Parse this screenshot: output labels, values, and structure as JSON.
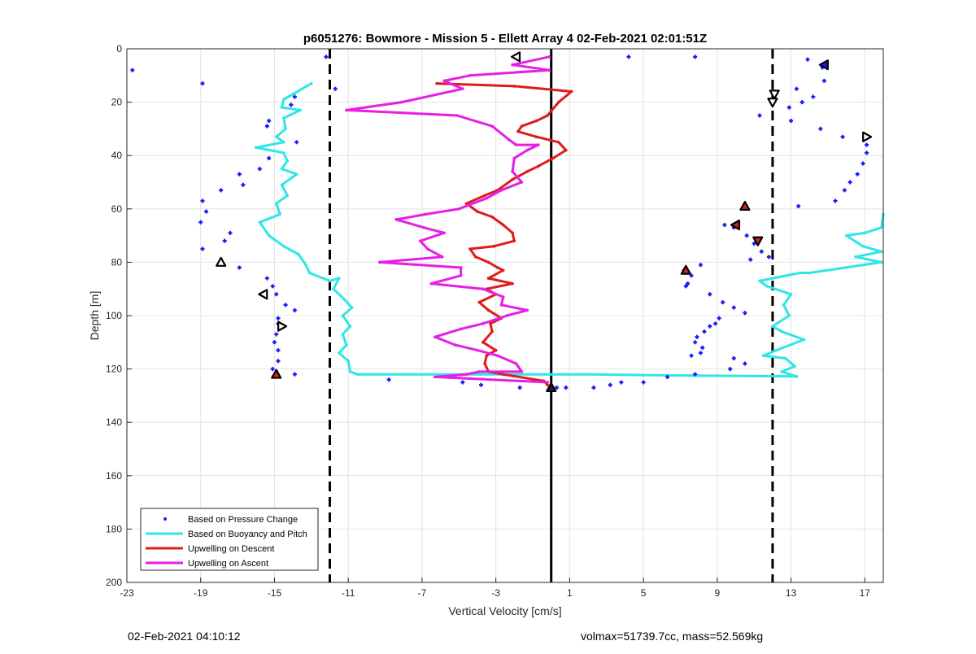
{
  "chart_data": {
    "type": "line",
    "title": "p6051276: Bowmore - Mission 5 - Ellett Array 4 02-Feb-2021 02:01:51Z",
    "xlabel": "Vertical Velocity [cm/s]",
    "ylabel": "Depth [m]",
    "xlim": [
      -23,
      18
    ],
    "ylim": [
      0,
      200
    ],
    "y_reversed": true,
    "xticks": [
      -23,
      -19,
      -15,
      -11,
      -7,
      -3,
      1,
      5,
      9,
      13,
      17
    ],
    "yticks": [
      0,
      20,
      40,
      60,
      80,
      100,
      120,
      140,
      160,
      180,
      200
    ],
    "grid": true,
    "legend_position": "bottom-left",
    "reference_lines": [
      {
        "x": -12,
        "style": "dashed"
      },
      {
        "x": 12,
        "style": "dashed"
      },
      {
        "x": 0,
        "style": "solid"
      }
    ],
    "series": [
      {
        "name": "Based on Pressure Change",
        "kind": "points",
        "color": "#1a1aff",
        "points": [
          [
            -22.7,
            8
          ],
          [
            -18.9,
            13
          ],
          [
            -12.2,
            3
          ],
          [
            -11.7,
            15
          ],
          [
            -13.9,
            18
          ],
          [
            -14.1,
            21
          ],
          [
            -15.3,
            27
          ],
          [
            -15.4,
            29
          ],
          [
            -13.8,
            35
          ],
          [
            -15.3,
            41
          ],
          [
            -15.8,
            45
          ],
          [
            -16.9,
            47
          ],
          [
            -16.7,
            51
          ],
          [
            -17.9,
            53
          ],
          [
            -18.9,
            57
          ],
          [
            -18.7,
            61
          ],
          [
            -19,
            65
          ],
          [
            -17.4,
            69
          ],
          [
            -17.7,
            72
          ],
          [
            -18.9,
            75
          ],
          [
            -16.9,
            82
          ],
          [
            -15.4,
            86
          ],
          [
            -15.1,
            89
          ],
          [
            -14.9,
            92
          ],
          [
            -14.4,
            96
          ],
          [
            -13.9,
            98
          ],
          [
            -14.8,
            101
          ],
          [
            -14.8,
            103
          ],
          [
            -14.9,
            107
          ],
          [
            -15,
            110
          ],
          [
            -14.8,
            113
          ],
          [
            -14.8,
            117
          ],
          [
            -15.1,
            120
          ],
          [
            -13.9,
            122
          ],
          [
            -8.8,
            124
          ],
          [
            -4.8,
            125
          ],
          [
            -3.8,
            126
          ],
          [
            -1.7,
            127
          ],
          [
            0.3,
            127
          ],
          [
            0.8,
            127
          ],
          [
            2.3,
            127
          ],
          [
            3.2,
            126
          ],
          [
            3.8,
            125
          ],
          [
            5,
            125
          ],
          [
            6.3,
            123
          ],
          [
            7.8,
            122
          ],
          [
            4.2,
            3
          ],
          [
            7.8,
            3
          ],
          [
            13.9,
            4
          ],
          [
            14.7,
            7
          ],
          [
            14.8,
            12
          ],
          [
            14.2,
            18
          ],
          [
            13.3,
            15
          ],
          [
            12.9,
            22
          ],
          [
            13.6,
            20
          ],
          [
            11.3,
            25
          ],
          [
            13,
            27
          ],
          [
            14.6,
            30
          ],
          [
            15.8,
            33
          ],
          [
            17.1,
            36
          ],
          [
            17.1,
            39
          ],
          [
            16.9,
            43
          ],
          [
            16.6,
            47
          ],
          [
            16.2,
            50
          ],
          [
            15.9,
            53
          ],
          [
            15.4,
            57
          ],
          [
            13.4,
            59
          ],
          [
            9.4,
            66
          ],
          [
            9.9,
            67
          ],
          [
            10.6,
            70
          ],
          [
            11,
            73
          ],
          [
            11.4,
            76
          ],
          [
            11.8,
            78
          ],
          [
            10.8,
            79
          ],
          [
            8.1,
            81
          ],
          [
            7.2,
            83
          ],
          [
            7.6,
            85
          ],
          [
            7.4,
            88
          ],
          [
            7.3,
            89
          ],
          [
            8.6,
            92
          ],
          [
            9.3,
            95
          ],
          [
            9.9,
            97
          ],
          [
            10.5,
            99
          ],
          [
            9.1,
            101
          ],
          [
            8.9,
            103
          ],
          [
            8.6,
            104
          ],
          [
            8.3,
            106
          ],
          [
            7.9,
            108
          ],
          [
            7.8,
            110
          ],
          [
            8.2,
            112
          ],
          [
            8.1,
            114
          ],
          [
            7.6,
            115
          ],
          [
            9.9,
            116
          ],
          [
            10.5,
            118
          ],
          [
            9.7,
            120
          ]
        ]
      },
      {
        "name": "Based on Buoyancy and Pitch",
        "kind": "line",
        "color": "#2fe6e6",
        "points": [
          [
            -13,
            13
          ],
          [
            -14,
            17
          ],
          [
            -14.5,
            19
          ],
          [
            -14.6,
            22
          ],
          [
            -13.6,
            23
          ],
          [
            -14.5,
            26
          ],
          [
            -14.4,
            30
          ],
          [
            -14.9,
            33
          ],
          [
            -14.5,
            35
          ],
          [
            -16,
            37
          ],
          [
            -14.5,
            39
          ],
          [
            -14.3,
            42
          ],
          [
            -14.6,
            45
          ],
          [
            -13.8,
            47
          ],
          [
            -14.6,
            51
          ],
          [
            -14.3,
            55
          ],
          [
            -14.9,
            58
          ],
          [
            -14.7,
            62
          ],
          [
            -15.8,
            65
          ],
          [
            -15.3,
            70
          ],
          [
            -14.5,
            74
          ],
          [
            -13.7,
            77
          ],
          [
            -13.3,
            81
          ],
          [
            -13.1,
            84
          ],
          [
            -12,
            87
          ],
          [
            -11.5,
            86
          ],
          [
            -11.8,
            90
          ],
          [
            -11.2,
            94
          ],
          [
            -10.8,
            97
          ],
          [
            -11.3,
            100
          ],
          [
            -10.9,
            104
          ],
          [
            -11.3,
            107
          ],
          [
            -11.1,
            111
          ],
          [
            -11.5,
            114
          ],
          [
            -11,
            117
          ],
          [
            -10.9,
            121
          ],
          [
            -10.5,
            122
          ],
          [
            2.2,
            122
          ],
          [
            5,
            122.3
          ],
          [
            8,
            122.5
          ],
          [
            10,
            122.6
          ],
          [
            13.3,
            122.8
          ],
          [
            12.5,
            121
          ],
          [
            13.2,
            119
          ],
          [
            12.7,
            116
          ],
          [
            11.5,
            115
          ],
          [
            12.2,
            113
          ],
          [
            13.7,
            109
          ],
          [
            12.5,
            106
          ],
          [
            12,
            104
          ],
          [
            12.9,
            100
          ],
          [
            12.6,
            96
          ],
          [
            13,
            92
          ],
          [
            11.7,
            89
          ],
          [
            11.3,
            87
          ],
          [
            12,
            86
          ],
          [
            13.5,
            84
          ],
          [
            14,
            84
          ],
          [
            17.9,
            80
          ],
          [
            16.5,
            78
          ],
          [
            17.9,
            76
          ],
          [
            16.9,
            74
          ],
          [
            16,
            70
          ],
          [
            17,
            69
          ],
          [
            17.9,
            67
          ],
          [
            18,
            62
          ]
        ]
      },
      {
        "name": "Upwelling on Descent",
        "kind": "line",
        "color": "#e01b1b",
        "points": [
          [
            -6.2,
            13
          ],
          [
            -2,
            14
          ],
          [
            1.1,
            16
          ],
          [
            0.4,
            20
          ],
          [
            -0.2,
            25
          ],
          [
            -0.8,
            27
          ],
          [
            -1.6,
            29
          ],
          [
            -1.8,
            31
          ],
          [
            -0.8,
            33
          ],
          [
            0.4,
            35
          ],
          [
            0.8,
            38
          ],
          [
            0.1,
            41
          ],
          [
            -0.7,
            44
          ],
          [
            -1.3,
            46
          ],
          [
            -2.1,
            49
          ],
          [
            -2.9,
            53
          ],
          [
            -3.6,
            55
          ],
          [
            -4.6,
            58
          ],
          [
            -4,
            61
          ],
          [
            -3.2,
            63
          ],
          [
            -2.6,
            66
          ],
          [
            -2.1,
            69
          ],
          [
            -2,
            72
          ],
          [
            -3.1,
            74
          ],
          [
            -4.4,
            75
          ],
          [
            -4.1,
            78
          ],
          [
            -3.4,
            80
          ],
          [
            -2.9,
            82
          ],
          [
            -2.6,
            83
          ],
          [
            -3.4,
            86
          ],
          [
            -2.1,
            88
          ],
          [
            -3.5,
            90
          ],
          [
            -3,
            92
          ],
          [
            -3.9,
            95
          ],
          [
            -3.4,
            98
          ],
          [
            -2.7,
            101
          ],
          [
            -3.3,
            103
          ],
          [
            -3.2,
            106
          ],
          [
            -3.7,
            110
          ],
          [
            -3,
            113
          ],
          [
            -3.5,
            115
          ],
          [
            -3.6,
            118
          ],
          [
            -3.4,
            121
          ],
          [
            -2.6,
            122
          ],
          [
            -0.4,
            124.5
          ],
          [
            -0.2,
            126
          ]
        ]
      },
      {
        "name": "Upwelling on Ascent",
        "kind": "line",
        "color": "#e61ee6",
        "points": [
          [
            -0.1,
            3
          ],
          [
            -2.1,
            6
          ],
          [
            -0.1,
            8
          ],
          [
            -4.4,
            10
          ],
          [
            -5.8,
            12
          ],
          [
            -4.8,
            15
          ],
          [
            -8.1,
            20
          ],
          [
            -11.1,
            23
          ],
          [
            -5.1,
            25
          ],
          [
            -3.2,
            29
          ],
          [
            -2.3,
            34
          ],
          [
            -1.9,
            36
          ],
          [
            -0.7,
            36
          ],
          [
            -1.3,
            38
          ],
          [
            -2,
            41
          ],
          [
            -2.1,
            46
          ],
          [
            -1.6,
            50
          ],
          [
            -2.7,
            53
          ],
          [
            -3.5,
            56
          ],
          [
            -5,
            60
          ],
          [
            -6.8,
            62
          ],
          [
            -8.4,
            64
          ],
          [
            -6.9,
            67
          ],
          [
            -5.8,
            69
          ],
          [
            -7.1,
            72
          ],
          [
            -6.7,
            75
          ],
          [
            -5.9,
            78
          ],
          [
            -9.3,
            80
          ],
          [
            -4.9,
            82
          ],
          [
            -4.9,
            85
          ],
          [
            -6.5,
            88
          ],
          [
            -3.7,
            90
          ],
          [
            -2.6,
            93
          ],
          [
            -2.7,
            96
          ],
          [
            -1.3,
            98
          ],
          [
            -2.4,
            100
          ],
          [
            -3.7,
            103
          ],
          [
            -4.9,
            105
          ],
          [
            -6.3,
            108
          ],
          [
            -5.2,
            111
          ],
          [
            -4,
            113
          ],
          [
            -2.9,
            115
          ],
          [
            -1.9,
            118
          ],
          [
            -1.6,
            121
          ],
          [
            -3.9,
            121
          ],
          [
            -4.6,
            122
          ],
          [
            -6.3,
            123
          ],
          [
            -0.2,
            125
          ]
        ]
      },
      {
        "name": "",
        "kind": "markers",
        "points": [
          {
            "x": -1.9,
            "y": 3,
            "dir": "left",
            "fill": "#ffffff"
          },
          {
            "x": 14.8,
            "y": 6,
            "dir": "left",
            "fill": "#1a1aff"
          },
          {
            "x": 12.1,
            "y": 17,
            "dir": "down",
            "fill": "#ffffff"
          },
          {
            "x": 12,
            "y": 20,
            "dir": "down",
            "fill": "#ffffff"
          },
          {
            "x": 17.1,
            "y": 33,
            "dir": "right",
            "fill": "#ffffff"
          },
          {
            "x": 10.5,
            "y": 59,
            "dir": "up",
            "fill": "#e01b1b"
          },
          {
            "x": 10,
            "y": 66,
            "dir": "left",
            "fill": "#e01b1b"
          },
          {
            "x": 11.2,
            "y": 72,
            "dir": "down",
            "fill": "#e01b1b"
          },
          {
            "x": -17.9,
            "y": 80,
            "dir": "up",
            "fill": "#ffffff"
          },
          {
            "x": 7.3,
            "y": 83,
            "dir": "up",
            "fill": "#e01b1b"
          },
          {
            "x": -15.6,
            "y": 92,
            "dir": "left",
            "fill": "#ffffff"
          },
          {
            "x": -14.6,
            "y": 104,
            "dir": "right",
            "fill": "#ffffff"
          },
          {
            "x": -14.9,
            "y": 122,
            "dir": "up",
            "fill": "#e01b1b"
          },
          {
            "x": 0,
            "y": 127,
            "dir": "up",
            "fill": "#222222"
          }
        ]
      }
    ]
  },
  "footer": {
    "timestamp": "02-Feb-2021 04:10:12",
    "summary": "volmax=51739.7cc, mass=52.569kg"
  }
}
